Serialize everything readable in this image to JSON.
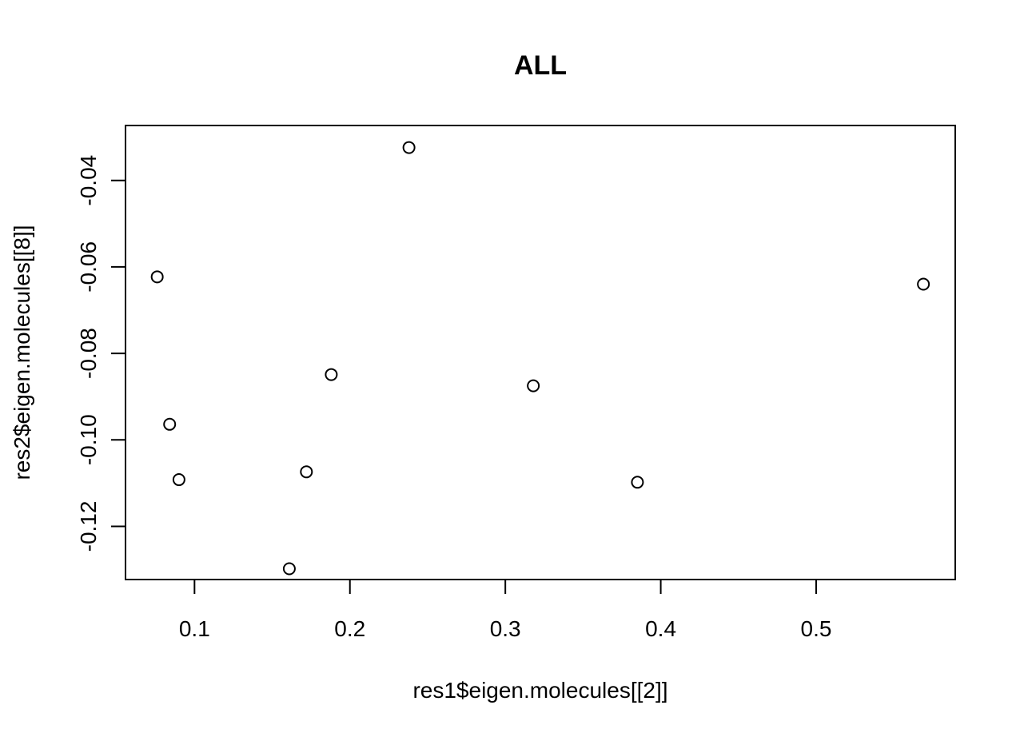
{
  "chart_data": {
    "type": "scatter",
    "title": "ALL",
    "xlabel": "res1$eigen.molecules[[2]]",
    "ylabel": "res2$eigen.molecules[[8]]",
    "xlim": [
      0.0556,
      0.5895
    ],
    "ylim": [
      -0.1323,
      -0.0273
    ],
    "x_ticks": [
      {
        "value": 0.1,
        "label": "0.1"
      },
      {
        "value": 0.2,
        "label": "0.2"
      },
      {
        "value": 0.3,
        "label": "0.3"
      },
      {
        "value": 0.4,
        "label": "0.4"
      },
      {
        "value": 0.5,
        "label": "0.5"
      }
    ],
    "y_ticks": [
      {
        "value": -0.04,
        "label": "-0.04"
      },
      {
        "value": -0.06,
        "label": "-0.06"
      },
      {
        "value": -0.08,
        "label": "-0.08"
      },
      {
        "value": -0.1,
        "label": "-0.10"
      },
      {
        "value": -0.12,
        "label": "-0.12"
      }
    ],
    "grid": false,
    "marker": "open-circle",
    "points": [
      {
        "x": 0.076,
        "y": -0.0623
      },
      {
        "x": 0.084,
        "y": -0.0964
      },
      {
        "x": 0.09,
        "y": -0.1092
      },
      {
        "x": 0.161,
        "y": -0.1298
      },
      {
        "x": 0.172,
        "y": -0.1074
      },
      {
        "x": 0.188,
        "y": -0.0849
      },
      {
        "x": 0.238,
        "y": -0.0324
      },
      {
        "x": 0.318,
        "y": -0.0875
      },
      {
        "x": 0.385,
        "y": -0.1098
      },
      {
        "x": 0.569,
        "y": -0.064
      }
    ]
  }
}
